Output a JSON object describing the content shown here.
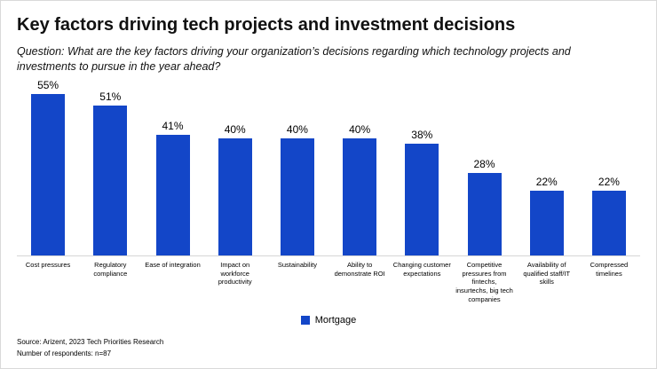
{
  "header": {
    "title": "Key factors driving tech projects and investment decisions",
    "subtitle": "Question: What are the key factors driving your organization’s decisions regarding which technology projects and investments to pursue in the year ahead?"
  },
  "chart_data": {
    "type": "bar",
    "title": "Key factors driving tech projects and investment decisions",
    "categories": [
      "Cost pressures",
      "Regulatory compliance",
      "Ease of integration",
      "Impact on workforce productivity",
      "Sustainability",
      "Ability to demonstrate ROI",
      "Changing customer expectations",
      "Competitive pressures from fintechs, insurtechs, big tech companies",
      "Availability of qualified staff/IT skills",
      "Compressed timelines"
    ],
    "values": [
      55,
      51,
      41,
      40,
      40,
      40,
      38,
      28,
      22,
      22
    ],
    "value_suffix": "%",
    "series_name": "Mortgage",
    "bar_color": "#1346c8",
    "xlabel": "",
    "ylabel": "",
    "ylim": [
      0,
      60
    ],
    "grid": false,
    "legend_position": "bottom",
    "data_labels": true
  },
  "footer": {
    "source": "Source: Arizent, 2023 Tech Priorities Research",
    "respondents": "Number of respondents: n=87"
  }
}
